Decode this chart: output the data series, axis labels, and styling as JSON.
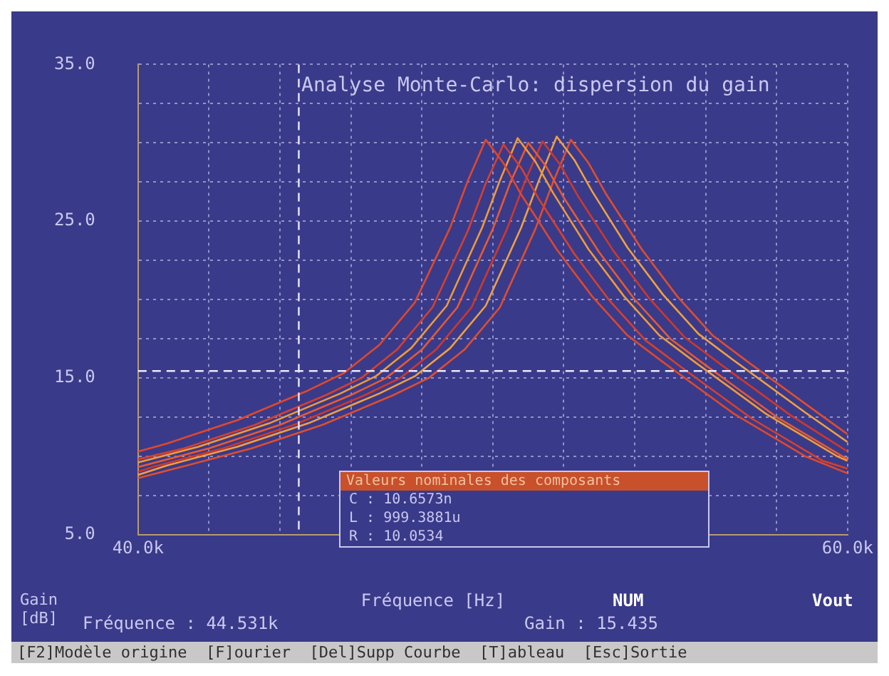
{
  "chart_data": {
    "type": "line",
    "title": "Analyse Monte-Carlo: dispersion du gain",
    "xlabel": "Fréquence [Hz]",
    "ylabel": "Gain [dB]",
    "xlim": [
      40000,
      60000
    ],
    "xticks": [
      {
        "value": 40000,
        "label": "40.0k"
      },
      {
        "value": 42000,
        "label": null
      },
      {
        "value": 44000,
        "label": null
      },
      {
        "value": 46000,
        "label": null
      },
      {
        "value": 48000,
        "label": null
      },
      {
        "value": 50000,
        "label": null
      },
      {
        "value": 52000,
        "label": null
      },
      {
        "value": 54000,
        "label": null
      },
      {
        "value": 56000,
        "label": null
      },
      {
        "value": 58000,
        "label": null
      },
      {
        "value": 60000,
        "label": "60.0k"
      }
    ],
    "ylim": [
      5,
      35
    ],
    "yticks": [
      {
        "value": 5,
        "label": "5.0"
      },
      {
        "value": 7.5,
        "label": null
      },
      {
        "value": 10,
        "label": null
      },
      {
        "value": 12.5,
        "label": null
      },
      {
        "value": 15,
        "label": "15.0"
      },
      {
        "value": 17.5,
        "label": null
      },
      {
        "value": 20,
        "label": null
      },
      {
        "value": 22.5,
        "label": null
      },
      {
        "value": 25,
        "label": "25.0"
      },
      {
        "value": 27.5,
        "label": null
      },
      {
        "value": 30,
        "label": null
      },
      {
        "value": 32.5,
        "label": null
      },
      {
        "value": 35,
        "label": "35.0"
      }
    ],
    "grid": true,
    "legend": false,
    "marker": "none",
    "line_style": "solid",
    "ref_lines": [
      {
        "axis": "x",
        "value": 44531,
        "color": "#e8e8ff",
        "line_style": "dashed"
      },
      {
        "axis": "y",
        "value": 15.435,
        "color": "#e8e8ff",
        "line_style": "dashed"
      }
    ],
    "series": [
      {
        "color": "#e0482a",
        "x": [
          40000,
          40800,
          42800,
          44800,
          45800,
          46800,
          47800,
          48800,
          49300,
          49800,
          50300,
          50800,
          51800,
          52800,
          53800,
          54800,
          56800,
          58800,
          60000
        ],
        "values": [
          10.3,
          10.8,
          12.3,
          14.2,
          15.3,
          17.1,
          19.8,
          24.6,
          27.6,
          30.2,
          28.7,
          26.7,
          23.2,
          20.2,
          17.7,
          16.0,
          12.7,
          10.0,
          8.9
        ]
      },
      {
        "color": "#d8402a",
        "x": [
          40000,
          41300,
          43300,
          45300,
          46300,
          47300,
          48300,
          49300,
          49800,
          50300,
          50800,
          51300,
          52300,
          53300,
          54300,
          55300,
          57300,
          59300,
          60000
        ],
        "values": [
          9.8,
          10.5,
          12.0,
          13.9,
          15.0,
          16.8,
          19.5,
          24.4,
          27.4,
          29.9,
          28.4,
          26.4,
          22.9,
          19.9,
          17.4,
          15.7,
          12.4,
          9.7,
          9.2
        ]
      },
      {
        "color": "#f09a38",
        "x": [
          40000,
          41700,
          43700,
          45700,
          46700,
          47700,
          48700,
          49700,
          50200,
          50700,
          51200,
          51700,
          52700,
          53700,
          54700,
          55700,
          57700,
          59700,
          60000
        ],
        "values": [
          9.6,
          10.6,
          12.1,
          14.0,
          15.1,
          16.9,
          19.6,
          24.6,
          27.6,
          30.3,
          28.8,
          26.8,
          23.2,
          20.2,
          17.7,
          16.0,
          12.7,
          10.0,
          9.7
        ]
      },
      {
        "color": "#e85a30",
        "x": [
          40000,
          42000,
          44000,
          46000,
          47000,
          48000,
          49000,
          50000,
          50500,
          51000,
          51500,
          52000,
          53000,
          54000,
          55000,
          56000,
          58000,
          60000
        ],
        "values": [
          9.3,
          10.5,
          12.0,
          13.9,
          15.0,
          16.8,
          19.5,
          24.5,
          27.5,
          30.0,
          28.5,
          26.5,
          23.0,
          20.0,
          17.5,
          15.8,
          12.5,
          9.8
        ]
      },
      {
        "color": "#d03828",
        "x": [
          40000,
          40400,
          42400,
          44400,
          46400,
          47400,
          48400,
          49400,
          50400,
          50900,
          51400,
          51900,
          52400,
          53400,
          54400,
          55400,
          56400,
          58400,
          60000
        ],
        "values": [
          9.0,
          9.3,
          10.5,
          12.0,
          13.9,
          15.0,
          16.8,
          19.5,
          24.5,
          27.5,
          30.1,
          28.6,
          26.6,
          23.1,
          20.1,
          17.6,
          15.9,
          12.6,
          10.3
        ]
      },
      {
        "color": "#f0a040",
        "x": [
          40000,
          40800,
          42800,
          44800,
          46800,
          47800,
          48800,
          49800,
          50800,
          51300,
          51800,
          52300,
          52800,
          53800,
          54800,
          55800,
          56800,
          58800,
          60000
        ],
        "values": [
          8.8,
          9.4,
          10.6,
          12.1,
          14.0,
          15.1,
          16.9,
          19.6,
          24.6,
          27.6,
          30.4,
          28.9,
          26.9,
          23.3,
          20.3,
          17.8,
          16.1,
          12.8,
          10.9
        ]
      },
      {
        "color": "#e04e2c",
        "x": [
          40000,
          41200,
          43200,
          45200,
          47200,
          48200,
          49200,
          50200,
          51200,
          51700,
          52200,
          52700,
          53200,
          54200,
          55200,
          56200,
          57200,
          59200,
          60000
        ],
        "values": [
          8.6,
          9.3,
          10.5,
          12.0,
          13.9,
          15.0,
          16.8,
          19.5,
          24.5,
          27.5,
          30.2,
          28.7,
          26.7,
          23.2,
          20.2,
          17.7,
          16.0,
          12.7,
          11.4
        ]
      }
    ],
    "annotations": [
      "NUM",
      "Vout",
      "Fréquence : 44.531k",
      "Gain : 15.435",
      "Valeurs nominales des composants",
      "C : 10.6573n",
      "L : 999.3881u",
      "R : 10.0534",
      "[F2]Modèle origine  [F]ourier  [Del]Supp Courbe  [T]ableau  [Esc]Sortie"
    ]
  }
}
